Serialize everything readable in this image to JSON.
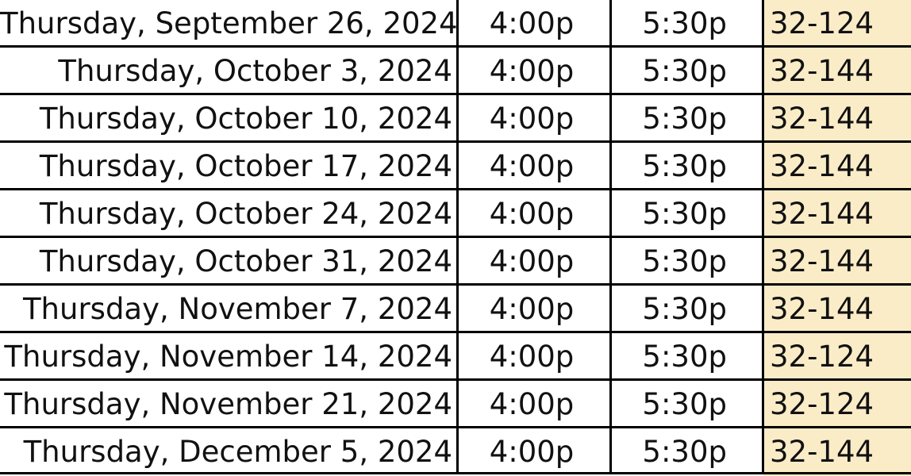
{
  "table": {
    "highlight_color": "#fbecc8",
    "rows": [
      {
        "date": "Thursday, September 26, 2024",
        "start": "4:00p",
        "end": "5:30p",
        "room": "32-124"
      },
      {
        "date": "Thursday, October 3, 2024",
        "start": "4:00p",
        "end": "5:30p",
        "room": "32-144"
      },
      {
        "date": "Thursday, October 10, 2024",
        "start": "4:00p",
        "end": "5:30p",
        "room": "32-144"
      },
      {
        "date": "Thursday, October 17, 2024",
        "start": "4:00p",
        "end": "5:30p",
        "room": "32-144"
      },
      {
        "date": "Thursday, October 24, 2024",
        "start": "4:00p",
        "end": "5:30p",
        "room": "32-144"
      },
      {
        "date": "Thursday, October 31, 2024",
        "start": "4:00p",
        "end": "5:30p",
        "room": "32-144"
      },
      {
        "date": "Thursday, November 7, 2024",
        "start": "4:00p",
        "end": "5:30p",
        "room": "32-144"
      },
      {
        "date": "Thursday, November 14, 2024",
        "start": "4:00p",
        "end": "5:30p",
        "room": "32-124"
      },
      {
        "date": "Thursday, November 21, 2024",
        "start": "4:00p",
        "end": "5:30p",
        "room": "32-124"
      },
      {
        "date": "Thursday, December 5, 2024",
        "start": "4:00p",
        "end": "5:30p",
        "room": "32-144"
      }
    ]
  }
}
